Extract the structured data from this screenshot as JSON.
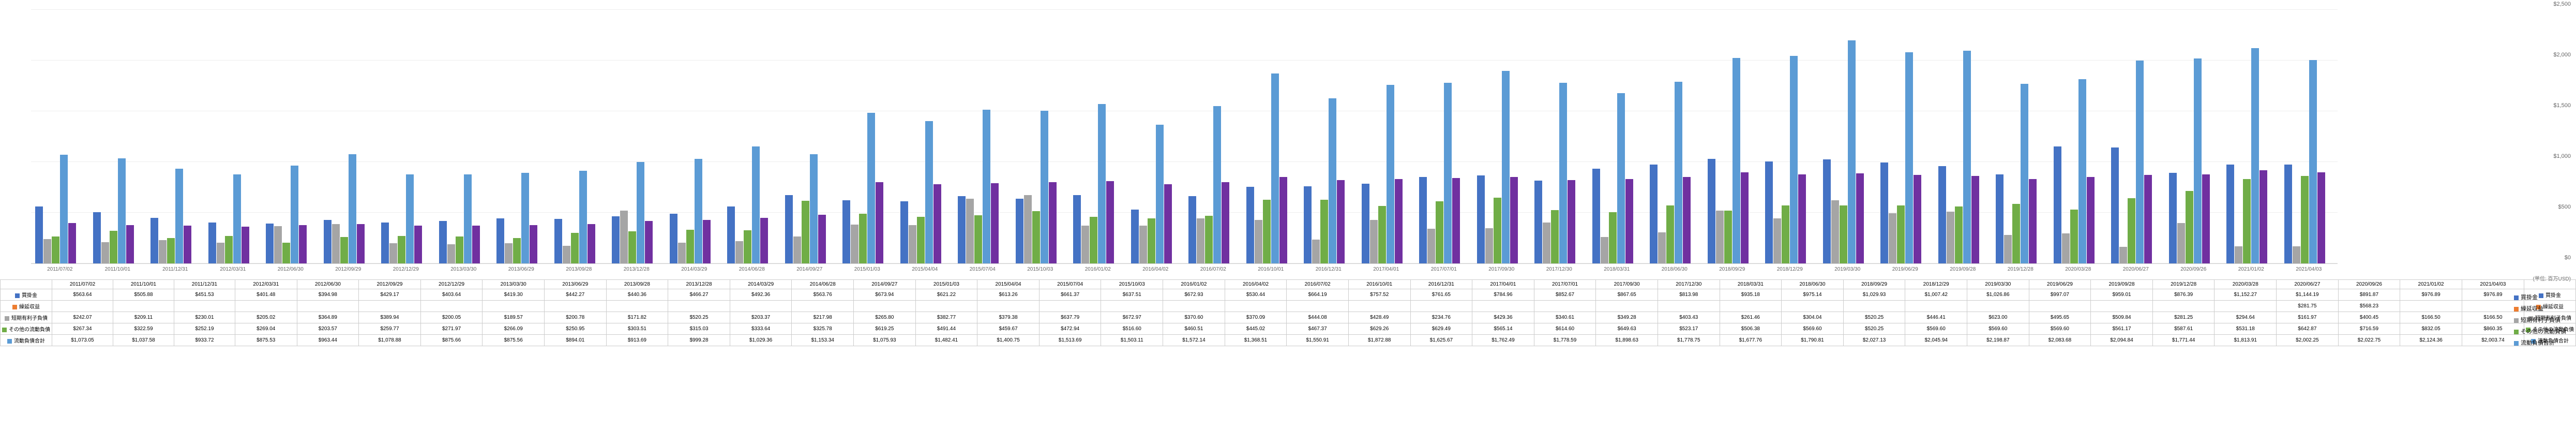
{
  "chart": {
    "type": "bar",
    "ylim": [
      0,
      2500
    ],
    "ytick_step": 500,
    "yticks": [
      "$0",
      "$500",
      "$1,000",
      "$1,500",
      "$2,000",
      "$2,500"
    ],
    "y_unit_label": "(単位: 百万USD)",
    "background_color": "#ffffff",
    "grid_color": "#eeeeee",
    "series": [
      {
        "key": "kaikakekin",
        "label": "買掛金",
        "color": "#4472c4"
      },
      {
        "key": "kurinobe",
        "label": "繰延収益",
        "color": "#ed7d31"
      },
      {
        "key": "tanki",
        "label": "短期有利子負債",
        "color": "#a5a5a5"
      },
      {
        "key": "sonota",
        "label": "その他の流動負債",
        "color": "#70ad47"
      },
      {
        "key": "goukei",
        "label": "流動負債合計",
        "color": "#5b9bd5"
      }
    ],
    "right_legend": [
      {
        "label": "買掛金",
        "color": "#4472c4"
      },
      {
        "label": "繰延収益",
        "color": "#ed7d31"
      },
      {
        "label": "短期有利子負債",
        "color": "#a5a5a5"
      },
      {
        "label": "その他の流動負債",
        "color": "#70ad47"
      },
      {
        "label": "流動負債合計",
        "color": "#5b9bd5"
      }
    ],
    "extra_series": {
      "color": "#7030a0"
    },
    "periods": [
      {
        "date": "2011/07/02",
        "kaikakekin": 563.64,
        "tanki": 242.07,
        "sonota": 267.34,
        "goukei": 1073.05,
        "extra": 400
      },
      {
        "date": "2011/10/01",
        "kaikakekin": 505.88,
        "tanki": 209.11,
        "sonota": 322.59,
        "goukei": 1037.58,
        "extra": 380
      },
      {
        "date": "2011/12/31",
        "kaikakekin": 451.53,
        "tanki": 230.01,
        "sonota": 252.19,
        "goukei": 933.72,
        "extra": 370
      },
      {
        "date": "2012/03/31",
        "kaikakekin": 401.48,
        "tanki": 205.02,
        "sonota": 269.04,
        "goukei": 875.53,
        "extra": 360
      },
      {
        "date": "2012/06/30",
        "kaikakekin": 394.98,
        "tanki": 364.89,
        "sonota": 203.57,
        "goukei": 963.44,
        "extra": 380
      },
      {
        "date": "2012/09/29",
        "kaikakekin": 429.17,
        "tanki": 389.94,
        "sonota": 259.77,
        "goukei": 1078.88,
        "extra": 390
      },
      {
        "date": "2012/12/29",
        "kaikakekin": 403.64,
        "tanki": 200.05,
        "sonota": 271.97,
        "goukei": 875.66,
        "extra": 370
      },
      {
        "date": "2013/03/30",
        "kaikakekin": 419.3,
        "tanki": 189.57,
        "sonota": 266.09,
        "goukei": 875.56,
        "extra": 375
      },
      {
        "date": "2013/06/29",
        "kaikakekin": 442.27,
        "tanki": 200.78,
        "sonota": 250.95,
        "goukei": 894.01,
        "extra": 380
      },
      {
        "date": "2013/09/28",
        "kaikakekin": 440.36,
        "tanki": 171.82,
        "sonota": 303.51,
        "goukei": 913.69,
        "extra": 390
      },
      {
        "date": "2013/12/28",
        "kaikakekin": 466.27,
        "tanki": 520.25,
        "sonota": 315.03,
        "goukei": 999.28,
        "extra": 420
      },
      {
        "date": "2014/03/29",
        "kaikakekin": 492.36,
        "tanki": 203.37,
        "sonota": 333.64,
        "goukei": 1029.36,
        "extra": 430
      },
      {
        "date": "2014/06/28",
        "kaikakekin": 563.76,
        "tanki": 217.98,
        "sonota": 325.78,
        "goukei": 1153.34,
        "extra": 450
      },
      {
        "date": "2014/09/27",
        "kaikakekin": 673.94,
        "tanki": 265.8,
        "sonota": 619.25,
        "goukei": 1075.93,
        "extra": 480
      },
      {
        "date": "2015/01/03",
        "kaikakekin": 621.22,
        "tanki": 382.77,
        "sonota": 491.44,
        "goukei": 1482.41,
        "extra": 800
      },
      {
        "date": "2015/04/04",
        "kaikakekin": 613.26,
        "tanki": 379.38,
        "sonota": 459.67,
        "goukei": 1400.75,
        "extra": 780
      },
      {
        "date": "2015/07/04",
        "kaikakekin": 661.37,
        "tanki": 637.79,
        "sonota": 472.94,
        "goukei": 1513.69,
        "extra": 790
      },
      {
        "date": "2015/10/03",
        "kaikakekin": 637.51,
        "tanki": 672.97,
        "sonota": 516.6,
        "goukei": 1503.11,
        "extra": 800
      },
      {
        "date": "2016/01/02",
        "kaikakekin": 672.93,
        "tanki": 370.6,
        "sonota": 460.51,
        "goukei": 1572.14,
        "extra": 810
      },
      {
        "date": "2016/04/02",
        "kaikakekin": 530.44,
        "tanki": 370.09,
        "sonota": 445.02,
        "goukei": 1368.51,
        "extra": 780
      },
      {
        "date": "2016/07/02",
        "kaikakekin": 664.19,
        "tanki": 444.08,
        "sonota": 467.37,
        "goukei": 1550.91,
        "extra": 800
      },
      {
        "date": "2016/10/01",
        "kaikakekin": 757.52,
        "tanki": 428.49,
        "sonota": 629.26,
        "goukei": 1872.88,
        "extra": 850
      },
      {
        "date": "2016/12/31",
        "kaikakekin": 761.65,
        "tanki": 234.76,
        "sonota": 629.49,
        "goukei": 1625.67,
        "extra": 820
      },
      {
        "date": "2017/04/01",
        "kaikakekin": 784.96,
        "tanki": 429.36,
        "sonota": 565.14,
        "goukei": 1762.49,
        "extra": 830
      },
      {
        "date": "2017/07/01",
        "kaikakekin": 852.67,
        "tanki": 340.61,
        "sonota": 614.6,
        "goukei": 1778.59,
        "extra": 840
      },
      {
        "date": "2017/09/30",
        "kaikakekin": 867.65,
        "tanki": 349.28,
        "sonota": 649.63,
        "goukei": 1898.63,
        "extra": 850
      },
      {
        "date": "2017/12/30",
        "kaikakekin": 813.98,
        "tanki": 403.43,
        "sonota": 523.17,
        "goukei": 1778.75,
        "extra": 820
      },
      {
        "date": "2018/03/31",
        "kaikakekin": 935.18,
        "tanki": 261.46,
        "sonota": 506.38,
        "goukei": 1677.76,
        "extra": 830
      },
      {
        "date": "2018/06/30",
        "kaikakekin": 975.14,
        "tanki": 304.04,
        "sonota": 569.6,
        "goukei": 1790.81,
        "extra": 850
      },
      {
        "date": "2018/09/29",
        "kaikakekin": 1029.93,
        "tanki": 520.25,
        "sonota": 520.25,
        "goukei": 2027.13,
        "extra": 900
      },
      {
        "date": "2018/12/29",
        "kaikakekin": 1007.42,
        "tanki": 446.41,
        "sonota": 569.6,
        "goukei": 2045.94,
        "extra": 880
      },
      {
        "date": "2019/03/30",
        "kaikakekin": 1026.86,
        "tanki": 623.0,
        "sonota": 569.6,
        "goukei": 2198.87,
        "extra": 890
      },
      {
        "date": "2019/06/29",
        "kaikakekin": 997.07,
        "tanki": 495.65,
        "sonota": 569.6,
        "goukei": 2083.68,
        "extra": 870
      },
      {
        "date": "2019/09/28",
        "kaikakekin": 959.01,
        "tanki": 509.84,
        "sonota": 561.17,
        "goukei": 2094.84,
        "extra": 860
      },
      {
        "date": "2019/12/28",
        "kaikakekin": 876.39,
        "tanki": 281.25,
        "sonota": 587.61,
        "goukei": 1771.44,
        "extra": 830
      },
      {
        "date": "2020/03/28",
        "kaikakekin": 1152.27,
        "tanki": 294.64,
        "sonota": 531.18,
        "goukei": 1813.91,
        "extra": 850
      },
      {
        "date": "2020/06/27",
        "kaikakekin": 1144.19,
        "tanki": 161.97,
        "sonota": 642.87,
        "goukei": 2002.25,
        "extra": 870
      },
      {
        "date": "2020/09/26",
        "kaikakekin": 891.87,
        "tanki": 400.45,
        "sonota": 716.59,
        "goukei": 2022.75,
        "extra": 880
      },
      {
        "date": "2021/01/02",
        "kaikakekin": 976.89,
        "tanki": 166.5,
        "sonota": 832.05,
        "goukei": 2124.36,
        "extra": 920
      },
      {
        "date": "2021/04/03",
        "kaikakekin": 976.89,
        "tanki": 166.5,
        "sonota": 860.35,
        "goukei": 2003.74,
        "extra": 900
      }
    ]
  },
  "table": {
    "rows": [
      {
        "key": "kaikakekin",
        "label": "買掛金",
        "color": "#4472c4",
        "values": [
          "$563.64",
          "$505.88",
          "$451.53",
          "$401.48",
          "$394.98",
          "$429.17",
          "$403.64",
          "$419.30",
          "$442.27",
          "$440.36",
          "$466.27",
          "$492.36",
          "$563.76",
          "$673.94",
          "$621.22",
          "$613.26",
          "$661.37",
          "$637.51",
          "$672.93",
          "$530.44",
          "$664.19",
          "$757.52",
          "$761.65",
          "$784.96",
          "$852.67",
          "$867.65",
          "$813.98",
          "$935.18",
          "$975.14",
          "$1,029.93",
          "$1,007.42",
          "$1,026.86",
          "$997.07",
          "$959.01",
          "$876.39",
          "$1,152.27",
          "$1,144.19",
          "$891.87",
          "$976.89",
          "$976.89"
        ]
      },
      {
        "key": "kurinobe",
        "label": "繰延収益",
        "color": "#ed7d31",
        "values": [
          "",
          "",
          "",
          "",
          "",
          "",
          "",
          "",
          "",
          "",
          "",
          "",
          "",
          "",
          "",
          "",
          "",
          "",
          "",
          "",
          "",
          "",
          "",
          "",
          "",
          "",
          "",
          "",
          "",
          "",
          "",
          "",
          "",
          "",
          "",
          "",
          "$281.75",
          "$568.23",
          "",
          ""
        ]
      },
      {
        "key": "tanki",
        "label": "短期有利子負債",
        "color": "#a5a5a5",
        "values": [
          "$242.07",
          "$209.11",
          "$230.01",
          "$205.02",
          "$364.89",
          "$389.94",
          "$200.05",
          "$189.57",
          "$200.78",
          "$171.82",
          "$520.25",
          "$203.37",
          "$217.98",
          "$265.80",
          "$382.77",
          "$379.38",
          "$637.79",
          "$672.97",
          "$370.60",
          "$370.09",
          "$444.08",
          "$428.49",
          "$234.76",
          "$429.36",
          "$340.61",
          "$349.28",
          "$403.43",
          "$261.46",
          "$304.04",
          "$520.25",
          "$446.41",
          "$623.00",
          "$495.65",
          "$509.84",
          "$281.25",
          "$294.64",
          "$161.97",
          "$400.45",
          "$166.50",
          "$166.50"
        ]
      },
      {
        "key": "sonota",
        "label": "その他の流動負債",
        "color": "#70ad47",
        "values": [
          "$267.34",
          "$322.59",
          "$252.19",
          "$269.04",
          "$203.57",
          "$259.77",
          "$271.97",
          "$266.09",
          "$250.95",
          "$303.51",
          "$315.03",
          "$333.64",
          "$325.78",
          "$619.25",
          "$491.44",
          "$459.67",
          "$472.94",
          "$516.60",
          "$460.51",
          "$445.02",
          "$467.37",
          "$629.26",
          "$629.49",
          "$565.14",
          "$614.60",
          "$649.63",
          "$523.17",
          "$506.38",
          "$569.60",
          "$520.25",
          "$569.60",
          "$569.60",
          "$569.60",
          "$561.17",
          "$587.61",
          "$531.18",
          "$642.87",
          "$716.59",
          "$832.05",
          "$860.35"
        ]
      },
      {
        "key": "goukei",
        "label": "流動負債合計",
        "color": "#5b9bd5",
        "values": [
          "$1,073.05",
          "$1,037.58",
          "$933.72",
          "$875.53",
          "$963.44",
          "$1,078.88",
          "$875.66",
          "$875.56",
          "$894.01",
          "$913.69",
          "$999.28",
          "$1,029.36",
          "$1,153.34",
          "$1,075.93",
          "$1,482.41",
          "$1,400.75",
          "$1,513.69",
          "$1,503.11",
          "$1,572.14",
          "$1,368.51",
          "$1,550.91",
          "$1,872.88",
          "$1,625.67",
          "$1,762.49",
          "$1,778.59",
          "$1,898.63",
          "$1,778.75",
          "$1,677.76",
          "$1,790.81",
          "$2,027.13",
          "$2,045.94",
          "$2,198.87",
          "$2,083.68",
          "$2,094.84",
          "$1,771.44",
          "$1,813.91",
          "$2,002.25",
          "$2,022.75",
          "$2,124.36",
          "$2,003.74"
        ]
      }
    ]
  }
}
